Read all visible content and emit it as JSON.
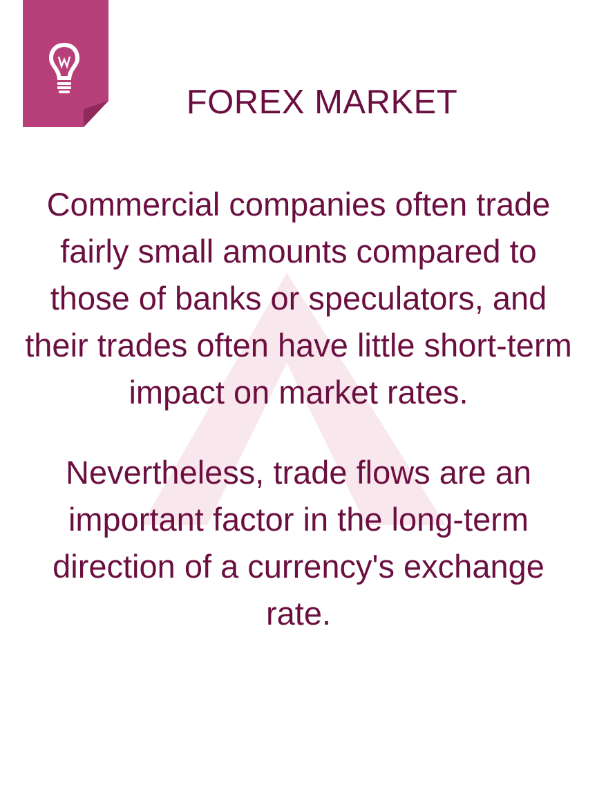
{
  "title": "FOREX MARKET",
  "icon": "lightbulb-icon",
  "colors": {
    "accent": "#b8407a",
    "text": "#6b0f40",
    "watermark": "#f9e7ee"
  },
  "paragraphs": [
    "Commercial companies often trade fairly small amounts compared to those of banks or speculators, and their trades often have little short-term impact on market rates.",
    "Nevertheless, trade flows are an important factor in the long-term direction of a currency's exchange rate."
  ]
}
